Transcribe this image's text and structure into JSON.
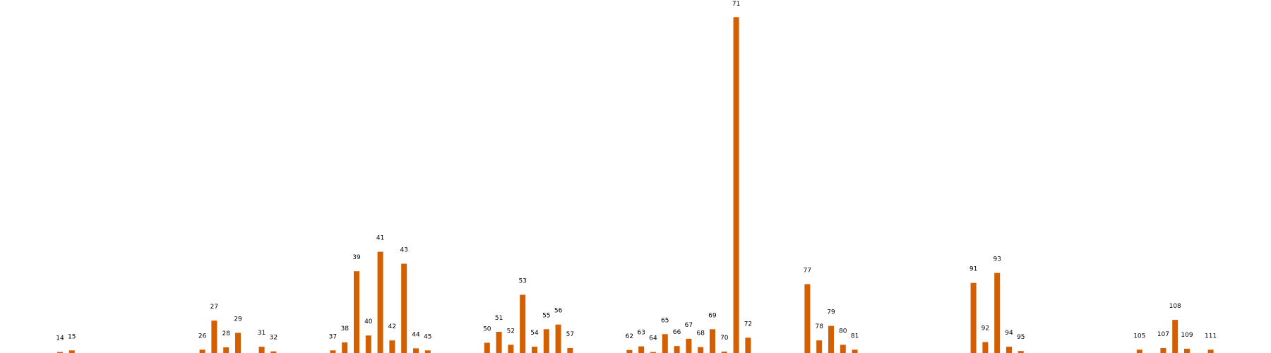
{
  "chart_data": {
    "type": "bar",
    "title": "",
    "xlabel": "",
    "ylabel": "",
    "grid": false,
    "legend": "none",
    "bar_color": "#D35F00",
    "ylim": [
      0,
      102
    ],
    "x": [
      14,
      15,
      26,
      27,
      28,
      29,
      31,
      32,
      37,
      38,
      39,
      40,
      41,
      42,
      43,
      44,
      45,
      50,
      51,
      52,
      53,
      54,
      55,
      56,
      57,
      62,
      63,
      64,
      65,
      66,
      67,
      68,
      69,
      70,
      71,
      72,
      77,
      78,
      79,
      80,
      81,
      91,
      92,
      93,
      94,
      95,
      105,
      107,
      108,
      109,
      111
    ],
    "values": [
      0.3,
      0.8,
      1.0,
      9.8,
      1.7,
      6.1,
      1.9,
      0.5,
      0.8,
      3.2,
      24.7,
      5.3,
      30.6,
      3.8,
      27.0,
      1.4,
      0.8,
      3.1,
      6.4,
      2.5,
      17.6,
      1.9,
      7.2,
      8.6,
      1.5,
      0.9,
      2.0,
      0.3,
      5.7,
      2.1,
      4.3,
      1.8,
      7.2,
      0.4,
      101.5,
      4.6,
      20.8,
      3.8,
      8.2,
      2.5,
      1.0,
      21.2,
      3.3,
      24.2,
      1.9,
      0.6,
      1.0,
      1.5,
      10.0,
      1.3,
      1.0
    ]
  }
}
